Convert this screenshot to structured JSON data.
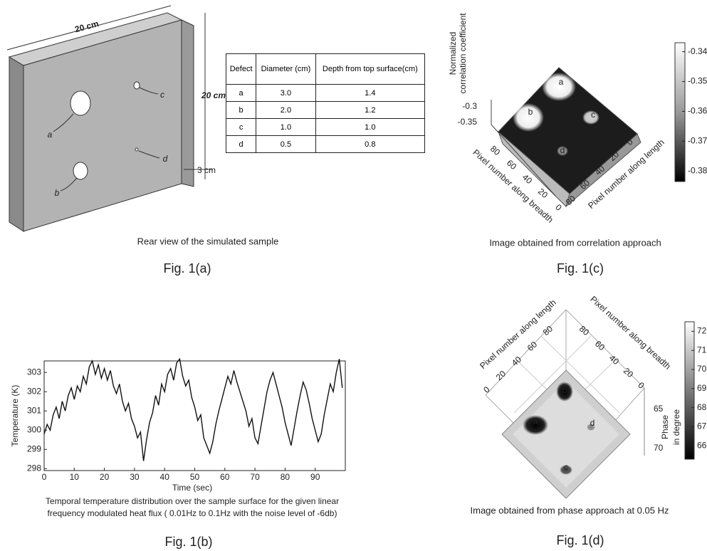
{
  "fig_a": {
    "dimensions": [
      "20 cm",
      "20 cm",
      "3 cm"
    ],
    "defect_labels": [
      "a",
      "b",
      "c",
      "d"
    ],
    "table": {
      "header": [
        "Defect",
        "Diameter (cm)",
        "Depth from top surface(cm)"
      ],
      "rows": [
        [
          "a",
          "3.0",
          "1.4"
        ],
        [
          "b",
          "2.0",
          "1.2"
        ],
        [
          "c",
          "1.0",
          "1.0"
        ],
        [
          "d",
          "0.5",
          "0.8"
        ]
      ]
    },
    "subtitle": "Rear view of the simulated sample",
    "caption": "Fig. 1(a)"
  },
  "chart_data": {
    "type": "line",
    "xlabel": "Time (sec)",
    "ylabel": "Temperature (K)",
    "color": "#111111",
    "x": [
      0,
      1,
      2,
      3,
      4,
      5,
      6,
      7,
      8,
      9,
      10,
      11,
      12,
      13,
      14,
      15,
      16,
      17,
      18,
      19,
      20,
      21,
      22,
      23,
      24,
      25,
      26,
      27,
      28,
      29,
      30,
      31,
      32,
      33,
      34,
      35,
      36,
      37,
      38,
      39,
      40,
      41,
      42,
      43,
      44,
      45,
      46,
      47,
      48,
      49,
      50,
      51,
      52,
      53,
      54,
      55,
      56,
      57,
      58,
      59,
      60,
      61,
      62,
      63,
      64,
      65,
      66,
      67,
      68,
      69,
      70,
      71,
      72,
      73,
      74,
      75,
      76,
      77,
      78,
      79,
      80,
      81,
      82,
      83,
      84,
      85,
      86,
      87,
      88,
      89,
      90,
      91,
      92,
      93,
      94,
      95,
      96,
      97,
      98,
      99
    ],
    "values": [
      299.8,
      300.3,
      300.0,
      300.8,
      301.2,
      300.6,
      301.5,
      301.0,
      301.8,
      302.2,
      301.6,
      302.3,
      302.0,
      302.8,
      302.4,
      303.3,
      303.6,
      302.9,
      303.4,
      302.7,
      303.2,
      302.6,
      303.1,
      302.3,
      301.9,
      302.4,
      301.5,
      301.0,
      301.4,
      300.6,
      300.2,
      299.6,
      299.9,
      298.4,
      299.5,
      300.4,
      300.9,
      301.8,
      301.3,
      302.4,
      302.0,
      302.9,
      303.2,
      302.6,
      303.5,
      303.7,
      302.8,
      302.3,
      302.6,
      301.7,
      301.2,
      300.5,
      300.8,
      299.6,
      299.2,
      298.8,
      299.4,
      300.3,
      301.0,
      301.6,
      302.2,
      302.8,
      302.4,
      303.1,
      302.5,
      302.0,
      301.5,
      301.0,
      300.2,
      300.6,
      299.6,
      299.3,
      300.2,
      301.1,
      302.0,
      302.6,
      303.0,
      302.4,
      301.8,
      301.2,
      300.4,
      299.8,
      299.2,
      300.1,
      301.0,
      301.8,
      302.5,
      302.1,
      301.4,
      300.6,
      300.0,
      299.4,
      299.8,
      300.8,
      301.6,
      302.4,
      302.0,
      303.0,
      303.7,
      302.2
    ],
    "xlim": [
      0,
      100
    ],
    "xticks": [
      0,
      10,
      20,
      30,
      40,
      50,
      60,
      70,
      80,
      90
    ],
    "ylim": [
      297.9,
      303.6
    ],
    "yticks": [
      298,
      299,
      300,
      301,
      302,
      303
    ],
    "caption_lines": [
      "Temporal temperature distribution over the sample surface for the given linear",
      "frequency modulated heat flux ( 0.01Hz to 0.1Hz with the noise level of -6db)"
    ],
    "figure_label": "Fig. 1(b)"
  },
  "fig_c": {
    "z_label": [
      "Normalized",
      "correlation coefficient"
    ],
    "z_ticks": [
      -0.3,
      -0.35
    ],
    "breadth_label": "Pixel number along breadth",
    "length_label": "Pixel number along length",
    "breadth_ticks": [
      80,
      60,
      40,
      20,
      0
    ],
    "length_ticks": [
      0,
      20,
      40,
      60,
      80
    ],
    "defect_labels": [
      "a",
      "b",
      "c",
      "d"
    ],
    "colorbar": {
      "clim": [
        -0.3835,
        -0.337
      ],
      "ticks": [
        -0.34,
        -0.35,
        -0.36,
        -0.37,
        -0.38
      ]
    },
    "subtitle": "Image obtained from correlation approach",
    "caption": "Fig. 1(c)"
  },
  "fig_d": {
    "z_label": [
      "Phase",
      "in degree"
    ],
    "z_ticks": [
      65,
      70
    ],
    "length_label": "Pixel number along length",
    "breadth_label": "Pixel number along breadth",
    "length_ticks": [
      80,
      60,
      40,
      20,
      0
    ],
    "breadth_ticks": [
      80,
      60,
      40,
      20,
      0
    ],
    "defect_labels": [
      "a",
      "b",
      "c",
      "d"
    ],
    "colorbar": {
      "clim": [
        65.3,
        72.5
      ],
      "ticks": [
        72,
        71,
        70,
        69,
        68,
        67,
        66
      ]
    },
    "subtitle": "Image obtained from phase approach at 0.05 Hz",
    "caption": "Fig. 1(d)"
  }
}
